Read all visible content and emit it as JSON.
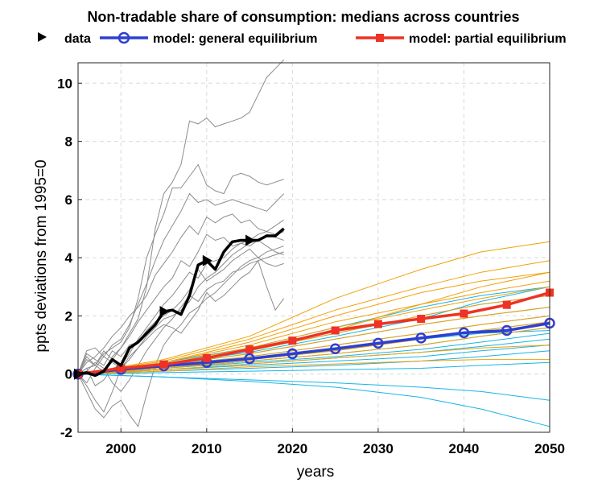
{
  "chart_data": {
    "type": "line",
    "title": "Non-tradable share of consumption: medians across countries",
    "xlabel": "years",
    "ylabel": "ppts deviations from 1995=0",
    "xlim": [
      1995,
      2050
    ],
    "ylim": [
      -2,
      10.7
    ],
    "xticks": [
      2000,
      2010,
      2020,
      2030,
      2040,
      2050
    ],
    "yticks": [
      -2,
      0,
      2,
      4,
      6,
      8,
      10
    ],
    "grid": true,
    "legend": {
      "placement": "top",
      "entries": [
        "data",
        "model: general equilibrium",
        "model: partial equilibrium"
      ]
    },
    "series": [
      {
        "name": "data",
        "color": "#000000",
        "marker": "triangle-right",
        "x": [
          1995,
          1996,
          1997,
          1998,
          1999,
          2000,
          2001,
          2002,
          2003,
          2004,
          2005,
          2006,
          2007,
          2008,
          2009,
          2010,
          2011,
          2012,
          2013,
          2014,
          2015,
          2016,
          2017,
          2018,
          2019
        ],
        "values": [
          0.0,
          0.05,
          -0.05,
          0.1,
          0.5,
          0.3,
          0.9,
          1.1,
          1.4,
          1.7,
          2.15,
          2.2,
          2.05,
          2.7,
          3.75,
          3.9,
          3.6,
          4.2,
          4.55,
          4.6,
          4.6,
          4.6,
          4.75,
          4.75,
          5.0
        ],
        "marker_x": [
          1995,
          2005,
          2010,
          2015
        ]
      },
      {
        "name": "model: general equilibrium",
        "color": "#2f3fcf",
        "marker": "circle",
        "x": [
          1995,
          2000,
          2005,
          2010,
          2015,
          2020,
          2025,
          2030,
          2035,
          2040,
          2045,
          2050
        ],
        "values": [
          0.0,
          0.16,
          0.28,
          0.4,
          0.53,
          0.7,
          0.87,
          1.06,
          1.24,
          1.42,
          1.5,
          1.75
        ]
      },
      {
        "name": "model: partial equilibrium",
        "color": "#ee3224",
        "marker": "square",
        "x": [
          1995,
          2000,
          2005,
          2010,
          2015,
          2020,
          2025,
          2030,
          2035,
          2040,
          2045,
          2050
        ],
        "values": [
          0.0,
          0.2,
          0.33,
          0.55,
          0.85,
          1.15,
          1.5,
          1.72,
          1.9,
          2.08,
          2.38,
          2.8
        ]
      }
    ],
    "country_data_color": "#8c8c8c",
    "country_data": [
      [
        0,
        0.2,
        0.3,
        0.1,
        0.6,
        0.9,
        1.4,
        1.9,
        3.0,
        5.0,
        6.2,
        6.6,
        7.2,
        8.7,
        8.6,
        8.8,
        8.5,
        8.6,
        8.7,
        8.8,
        9.0,
        9.6,
        10.2,
        10.5,
        10.8
      ],
      [
        0,
        0.5,
        0.3,
        0.7,
        0.9,
        1.1,
        1.6,
        2.6,
        4.0,
        4.8,
        5.5,
        6.4,
        6.4,
        6.8,
        7.2,
        6.5,
        6.3,
        6.2,
        6.8,
        6.9,
        6.8,
        6.6,
        6.5,
        6.6,
        6.7
      ],
      [
        0,
        -0.3,
        0.2,
        0.6,
        1.0,
        1.2,
        1.7,
        2.4,
        3.1,
        3.9,
        4.6,
        5.1,
        5.6,
        6.2,
        5.9,
        6.0,
        5.8,
        5.9,
        6.0,
        5.9,
        5.8,
        5.7,
        5.6,
        5.9,
        6.2
      ],
      [
        0,
        0.4,
        0.6,
        0.9,
        1.3,
        1.6,
        2.0,
        2.3,
        2.7,
        3.4,
        3.8,
        4.2,
        4.7,
        5.1,
        4.8,
        5.4,
        5.2,
        5.4,
        5.5,
        5.2,
        5.3,
        5.0,
        4.9,
        5.1,
        5.3
      ],
      [
        0,
        0.6,
        0.3,
        0.8,
        0.5,
        0.9,
        1.3,
        1.8,
        2.2,
        2.6,
        3.0,
        3.3,
        3.9,
        3.7,
        4.2,
        4.8,
        4.6,
        4.7,
        4.4,
        4.5,
        4.6,
        4.8,
        4.9,
        4.8,
        4.9
      ],
      [
        0,
        0.2,
        -0.4,
        -0.2,
        0.2,
        0.3,
        0.7,
        1.2,
        1.6,
        2.0,
        2.4,
        2.7,
        3.1,
        3.5,
        3.3,
        3.8,
        3.9,
        4.0,
        4.3,
        4.5,
        4.4,
        4.6,
        4.4,
        4.2,
        4.1
      ],
      [
        0,
        0.7,
        0.5,
        0.3,
        0.8,
        0.6,
        1.0,
        1.1,
        1.5,
        1.8,
        2.0,
        2.2,
        2.5,
        2.9,
        3.6,
        3.2,
        3.4,
        3.6,
        3.9,
        4.1,
        4.3,
        4.0,
        3.8,
        3.7,
        3.8
      ],
      [
        0,
        -0.4,
        -0.9,
        -1.3,
        -0.6,
        0.2,
        0.5,
        0.9,
        1.3,
        1.6,
        1.9,
        2.0,
        2.2,
        2.5,
        3.0,
        3.3,
        3.5,
        3.8,
        4.1,
        4.3,
        4.5,
        4.6,
        4.8,
        4.7,
        4.6
      ],
      [
        0,
        -0.6,
        -1.2,
        -1.5,
        -1.1,
        -0.9,
        -1.4,
        -1.8,
        -0.7,
        0.3,
        1.0,
        1.4,
        1.7,
        2.1,
        2.3,
        2.6,
        2.8,
        3.1,
        3.4,
        3.7,
        3.9,
        4.0,
        4.2,
        4.3,
        4.4
      ],
      [
        0,
        0.8,
        0.9,
        0.6,
        0.4,
        0.2,
        0.6,
        0.9,
        1.2,
        1.5,
        1.7,
        1.6,
        1.4,
        1.8,
        2.2,
        2.8,
        2.5,
        2.7,
        3.0,
        3.3,
        3.5,
        3.9,
        3.0,
        2.2,
        2.6
      ],
      [
        0,
        0.1,
        0.4,
        0.2,
        -0.3,
        -0.6,
        -0.2,
        0.3,
        0.8,
        1.2,
        1.6,
        1.9,
        2.3,
        2.7,
        2.5,
        2.9,
        3.1,
        3.2,
        3.5,
        3.6,
        3.8,
        3.9,
        4.0,
        4.1,
        4.2
      ]
    ],
    "model_country_colors": {
      "general": "#17b4e8",
      "partial": "#f1a007"
    },
    "model_x": [
      1995,
      2005,
      2015,
      2025,
      2035,
      2042,
      2050
    ],
    "model_general_countries": [
      [
        0,
        0.4,
        0.9,
        1.6,
        2.3,
        2.7,
        3.0
      ],
      [
        0,
        0.35,
        0.8,
        1.4,
        2.0,
        2.4,
        2.7
      ],
      [
        0,
        0.3,
        0.7,
        1.2,
        1.7,
        2.0,
        2.3
      ],
      [
        0,
        0.3,
        0.6,
        1.0,
        1.4,
        1.7,
        2.0
      ],
      [
        0,
        0.25,
        0.5,
        0.8,
        1.2,
        1.5,
        1.8
      ],
      [
        0,
        0.2,
        0.45,
        0.7,
        1.0,
        1.3,
        1.6
      ],
      [
        0,
        0.2,
        0.4,
        0.6,
        0.85,
        1.1,
        1.4
      ],
      [
        0,
        0.15,
        0.35,
        0.55,
        0.75,
        0.95,
        1.2
      ],
      [
        0,
        0.15,
        0.3,
        0.45,
        0.6,
        0.8,
        1.0
      ],
      [
        0,
        0.1,
        0.2,
        0.3,
        0.45,
        0.6,
        0.8
      ],
      [
        0,
        0.05,
        0.1,
        0.15,
        0.2,
        0.3,
        0.4
      ],
      [
        0,
        -0.1,
        -0.2,
        -0.3,
        -0.45,
        -0.6,
        -0.9
      ],
      [
        0,
        -0.1,
        -0.25,
        -0.45,
        -0.8,
        -1.2,
        -1.8
      ],
      [
        0,
        0.35,
        0.75,
        1.3,
        1.9,
        2.5,
        3.0
      ],
      [
        0,
        0.25,
        0.55,
        0.9,
        1.2,
        1.4,
        1.5
      ]
    ],
    "model_partial_countries": [
      [
        0,
        0.5,
        1.3,
        2.6,
        3.6,
        4.2,
        4.55
      ],
      [
        0,
        0.45,
        1.2,
        2.2,
        3.0,
        3.5,
        3.9
      ],
      [
        0,
        0.4,
        1.1,
        2.0,
        2.8,
        3.2,
        3.5
      ],
      [
        0,
        0.4,
        1.0,
        1.8,
        2.4,
        2.8,
        3.2
      ],
      [
        0,
        0.35,
        0.9,
        1.6,
        2.2,
        2.6,
        3.0
      ],
      [
        0,
        0.3,
        0.8,
        1.4,
        2.0,
        2.4,
        2.7
      ],
      [
        0,
        0.3,
        0.7,
        1.2,
        1.7,
        2.0,
        2.3
      ],
      [
        0,
        0.25,
        0.6,
        1.0,
        1.4,
        1.7,
        2.0
      ],
      [
        0,
        0.2,
        0.5,
        0.8,
        1.2,
        1.5,
        1.8
      ],
      [
        0,
        0.2,
        0.45,
        0.7,
        1.0,
        1.3,
        1.6
      ],
      [
        0,
        0.15,
        0.35,
        0.55,
        0.75,
        0.9,
        1.0
      ],
      [
        0,
        0.1,
        0.25,
        0.35,
        0.45,
        0.5,
        0.5
      ],
      [
        0,
        0.35,
        0.8,
        1.5,
        2.4,
        3.0,
        3.5
      ]
    ]
  }
}
